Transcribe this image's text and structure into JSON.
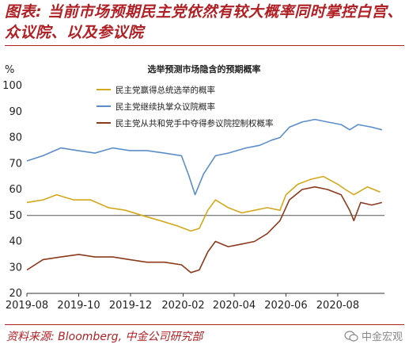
{
  "figure": {
    "title": "图表: 当前市场预期民主党依然有较大概率同时掌控白宫、众议院、以及参议院",
    "source": "资料来源: Bloomberg, 中金公司研究部",
    "watermark": "中金宏观"
  },
  "chart_data": {
    "type": "line",
    "title": "选举预测市场隐含的预期概率",
    "ylabel": "%",
    "ylim": [
      20,
      100
    ],
    "yticks": [
      20,
      30,
      40,
      50,
      60,
      70,
      80,
      90,
      100
    ],
    "xlim": [
      "2019-08-01",
      "2020-09-25"
    ],
    "xticks": [
      "2019-08",
      "2019-10",
      "2019-12",
      "2020-02",
      "2020-04",
      "2020-06",
      "2020-08"
    ],
    "reference_line": 50,
    "legend_position": "top",
    "series": [
      {
        "name": "民主党赢得总统选举的概率",
        "color": "#d4a81c",
        "points": [
          [
            "2019-08-01",
            55
          ],
          [
            "2019-08-20",
            56
          ],
          [
            "2019-09-05",
            58
          ],
          [
            "2019-09-25",
            56
          ],
          [
            "2019-10-15",
            56
          ],
          [
            "2019-11-05",
            53
          ],
          [
            "2019-11-25",
            52
          ],
          [
            "2019-12-15",
            50
          ],
          [
            "2020-01-05",
            48
          ],
          [
            "2020-01-25",
            46
          ],
          [
            "2020-02-10",
            44
          ],
          [
            "2020-02-20",
            45
          ],
          [
            "2020-03-01",
            52
          ],
          [
            "2020-03-10",
            56
          ],
          [
            "2020-03-25",
            53
          ],
          [
            "2020-04-10",
            51
          ],
          [
            "2020-04-25",
            52
          ],
          [
            "2020-05-10",
            53
          ],
          [
            "2020-05-25",
            52
          ],
          [
            "2020-06-01",
            58
          ],
          [
            "2020-06-15",
            62
          ],
          [
            "2020-07-01",
            64
          ],
          [
            "2020-07-15",
            65
          ],
          [
            "2020-08-01",
            62
          ],
          [
            "2020-08-10",
            60
          ],
          [
            "2020-08-20",
            58
          ],
          [
            "2020-09-05",
            61
          ],
          [
            "2020-09-20",
            59
          ]
        ]
      },
      {
        "name": "民主党继续执掌众议院概率",
        "color": "#5b8ec9",
        "points": [
          [
            "2019-08-01",
            71
          ],
          [
            "2019-08-20",
            73
          ],
          [
            "2019-09-10",
            76
          ],
          [
            "2019-09-30",
            75
          ],
          [
            "2019-10-20",
            74
          ],
          [
            "2019-11-10",
            76
          ],
          [
            "2019-11-30",
            75
          ],
          [
            "2019-12-20",
            75
          ],
          [
            "2020-01-10",
            74
          ],
          [
            "2020-01-30",
            73
          ],
          [
            "2020-02-08",
            65
          ],
          [
            "2020-02-15",
            58
          ],
          [
            "2020-02-25",
            66
          ],
          [
            "2020-03-10",
            73
          ],
          [
            "2020-03-25",
            74
          ],
          [
            "2020-04-15",
            76
          ],
          [
            "2020-05-01",
            77
          ],
          [
            "2020-05-15",
            79
          ],
          [
            "2020-05-25",
            80
          ],
          [
            "2020-06-05",
            84
          ],
          [
            "2020-06-20",
            86
          ],
          [
            "2020-07-05",
            87
          ],
          [
            "2020-07-20",
            86
          ],
          [
            "2020-08-05",
            85
          ],
          [
            "2020-08-15",
            83
          ],
          [
            "2020-08-25",
            85
          ],
          [
            "2020-09-10",
            84
          ],
          [
            "2020-09-22",
            83
          ]
        ]
      },
      {
        "name": "民主党从共和党手中夺得参议院控制权概率",
        "color": "#8b3a1c",
        "points": [
          [
            "2019-08-01",
            29
          ],
          [
            "2019-08-20",
            33
          ],
          [
            "2019-09-10",
            34
          ],
          [
            "2019-10-01",
            35
          ],
          [
            "2019-10-20",
            34
          ],
          [
            "2019-11-10",
            34
          ],
          [
            "2019-11-30",
            33
          ],
          [
            "2019-12-20",
            32
          ],
          [
            "2020-01-10",
            32
          ],
          [
            "2020-01-30",
            31
          ],
          [
            "2020-02-10",
            28
          ],
          [
            "2020-02-20",
            29
          ],
          [
            "2020-03-01",
            36
          ],
          [
            "2020-03-10",
            40
          ],
          [
            "2020-03-25",
            38
          ],
          [
            "2020-04-10",
            39
          ],
          [
            "2020-04-25",
            40
          ],
          [
            "2020-05-10",
            43
          ],
          [
            "2020-05-25",
            48
          ],
          [
            "2020-06-05",
            56
          ],
          [
            "2020-06-20",
            60
          ],
          [
            "2020-07-05",
            61
          ],
          [
            "2020-07-20",
            60
          ],
          [
            "2020-08-05",
            58
          ],
          [
            "2020-08-15",
            52
          ],
          [
            "2020-08-20",
            48
          ],
          [
            "2020-08-28",
            55
          ],
          [
            "2020-09-10",
            54
          ],
          [
            "2020-09-22",
            55
          ]
        ]
      }
    ]
  },
  "colors": {
    "brand": "#b01f24",
    "reference_line": "#555555"
  }
}
